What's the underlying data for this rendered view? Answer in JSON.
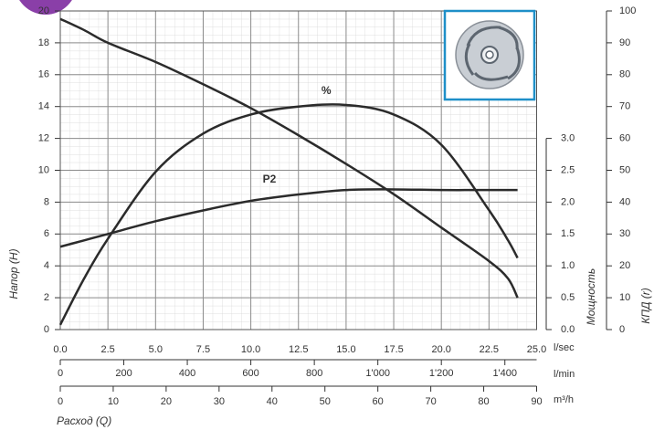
{
  "chart_data": {
    "type": "line",
    "ylabel": "Напор (H)",
    "y2label": "Мощность",
    "y3label": "КПД  (r)",
    "xlabel": "Расход (Q)",
    "xunit": "l/sec",
    "x2unit": "l/min",
    "x3unit": "m³/h",
    "x": [
      0,
      1.25,
      2.5,
      5,
      7.5,
      10,
      12.5,
      15,
      17.5,
      20,
      22.5,
      23.5,
      24
    ],
    "series": [
      {
        "name": null,
        "color": "#2b2b2b",
        "axis": "y",
        "values": [
          19.5,
          18.8,
          18.0,
          16.8,
          15.4,
          13.9,
          12.2,
          10.4,
          8.5,
          6.4,
          4.3,
          3.2,
          2.0
        ]
      },
      {
        "name": "%",
        "color": "#2b2b2b",
        "axis": "y3",
        "values": [
          1.5,
          16,
          28.5,
          49.5,
          61.5,
          67.5,
          70,
          70.5,
          67.5,
          58,
          37.5,
          28,
          22.5
        ]
      },
      {
        "name": "P2",
        "color": "#2b2b2b",
        "axis": "y2",
        "values": [
          1.3,
          1.4,
          1.5,
          1.7,
          1.87,
          2.02,
          2.12,
          2.19,
          2.2,
          2.19,
          2.19,
          2.19,
          2.19
        ]
      }
    ],
    "xlim": [
      0,
      25
    ],
    "xticks": [
      {
        "value": 0,
        "label": "0.0"
      },
      2.5,
      {
        "value": 5,
        "label": "5.0"
      },
      7.5,
      {
        "value": 10,
        "label": "10.0"
      },
      12.5,
      {
        "value": 15,
        "label": "15.0"
      },
      17.5,
      {
        "value": 20,
        "label": "20.0"
      },
      22.5,
      {
        "value": 25,
        "label": "25.0"
      }
    ],
    "x2lim": [
      0,
      1500
    ],
    "x2ticks": [
      0,
      200,
      400,
      600,
      800,
      {
        "value": 1000,
        "label": "1'000"
      },
      {
        "value": 1200,
        "label": "1'200"
      },
      {
        "value": 1400,
        "label": "1'400"
      }
    ],
    "x3lim": [
      0,
      90
    ],
    "x3ticks": [
      0,
      10,
      20,
      30,
      40,
      50,
      60,
      70,
      80,
      90
    ],
    "ylim": [
      0,
      20
    ],
    "yticks": [
      0,
      2,
      4,
      6,
      8,
      10,
      12,
      14,
      16,
      18,
      20
    ],
    "y2lim": [
      0,
      5
    ],
    "y2ticks": [
      {
        "value": 0,
        "label": "0.0"
      },
      0.5,
      {
        "value": 1,
        "label": "1.0"
      },
      1.5,
      {
        "value": 2,
        "label": "2.0"
      },
      2.5,
      {
        "value": 3,
        "label": "3.0"
      }
    ],
    "y3lim": [
      0,
      100
    ],
    "y3ticks": [
      0,
      10,
      20,
      30,
      40,
      50,
      60,
      70,
      80,
      90,
      100
    ],
    "grid": true
  }
}
